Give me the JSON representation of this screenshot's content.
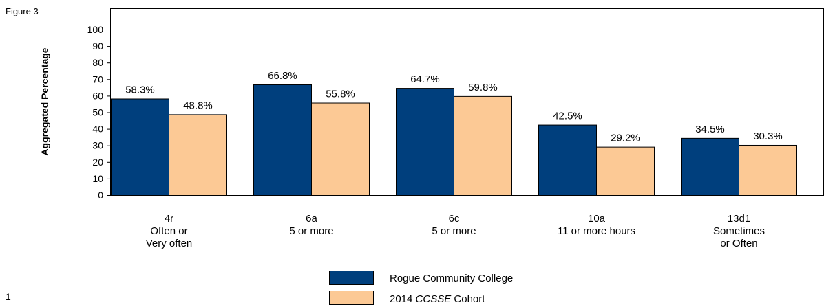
{
  "figure_label": "Figure 3",
  "page_number": "1",
  "chart_data": {
    "type": "bar",
    "ylabel": "Aggregated Percentage",
    "ylim": [
      0,
      100
    ],
    "yticks": [
      0,
      10,
      20,
      30,
      40,
      50,
      60,
      70,
      80,
      90,
      100
    ],
    "categories": [
      [
        "4r",
        "Often or",
        "Very often"
      ],
      [
        "6a",
        "5 or more"
      ],
      [
        "6c",
        "5 or more"
      ],
      [
        "10a",
        "11 or more hours"
      ],
      [
        "13d1",
        "Sometimes",
        "or Often"
      ]
    ],
    "series": [
      {
        "name": "Rogue Community College",
        "color": "#003f7d",
        "values": [
          58.3,
          66.8,
          64.7,
          42.5,
          34.5
        ],
        "labels": [
          "58.3%",
          "66.8%",
          "64.7%",
          "42.5%",
          "34.5%"
        ]
      },
      {
        "name_parts": [
          "2014 ",
          "CCSSE",
          " Cohort"
        ],
        "color": "#fcc995",
        "values": [
          48.8,
          55.8,
          59.8,
          29.2,
          30.3
        ],
        "labels": [
          "48.8%",
          "55.8%",
          "59.8%",
          "29.2%",
          "30.3%"
        ]
      }
    ],
    "grid": false,
    "legend_position": "bottom-center"
  }
}
